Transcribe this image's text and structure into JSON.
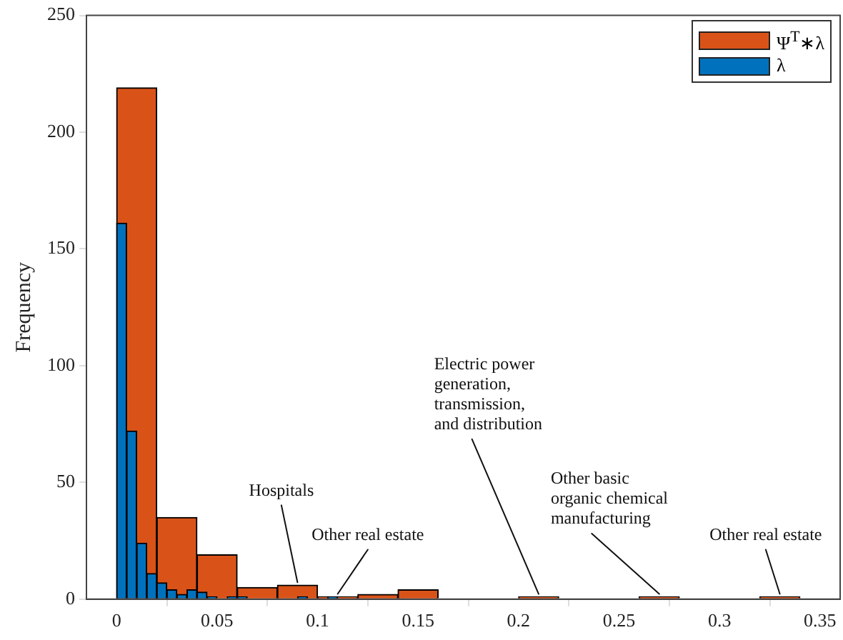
{
  "chart_data": {
    "type": "histogram",
    "ylabel": "Frequency",
    "bins": [
      0,
      0.02,
      0.04,
      0.06,
      0.08,
      0.1,
      0.12,
      0.14,
      0.16,
      0.18,
      0.2,
      0.22,
      0.24,
      0.26,
      0.28,
      0.3,
      0.32,
      0.34
    ],
    "series": [
      {
        "name": "Ψ$^{T}$∗λ",
        "color": "#d95319",
        "values": [
          219,
          35,
          19,
          5,
          6,
          1,
          2,
          4,
          0,
          0,
          1,
          0,
          0,
          1,
          0,
          0,
          1
        ]
      },
      {
        "name": "λ",
        "color": "#0072bd",
        "bins": [
          0,
          0.005,
          0.01,
          0.015,
          0.02,
          0.025,
          0.03,
          0.035,
          0.04,
          0.045,
          0.05,
          0.055,
          0.06,
          0.065,
          0.07,
          0.075,
          0.08,
          0.085,
          0.09,
          0.095,
          0.1,
          0.105,
          0.11
        ],
        "values": [
          161,
          72,
          24,
          11,
          7,
          4,
          2,
          4,
          3,
          1,
          0,
          1,
          1,
          0,
          0,
          0,
          0,
          0,
          1,
          0,
          0,
          1
        ]
      }
    ],
    "xlim": [
      -0.015,
      0.36
    ],
    "ylim": [
      0,
      250
    ],
    "xticks": [
      0,
      0.05,
      0.1,
      0.15,
      0.2,
      0.25,
      0.3,
      0.35
    ],
    "yticks": [
      0,
      50,
      100,
      150,
      200,
      250
    ],
    "grid": false,
    "legend": "top right",
    "annotations": [
      {
        "text": "Hospitals",
        "x": 0.09,
        "y": 6
      },
      {
        "text": "Other real estate",
        "x": 0.11,
        "y": 1
      },
      {
        "text": "Electric power\ngeneration,\ntransmission,\nand distribution",
        "x": 0.21,
        "y": 1
      },
      {
        "text": "Other basic\norganic chemical\nmanufacturing",
        "x": 0.27,
        "y": 1
      },
      {
        "text": "Other real estate",
        "x": 0.33,
        "y": 1
      }
    ]
  }
}
